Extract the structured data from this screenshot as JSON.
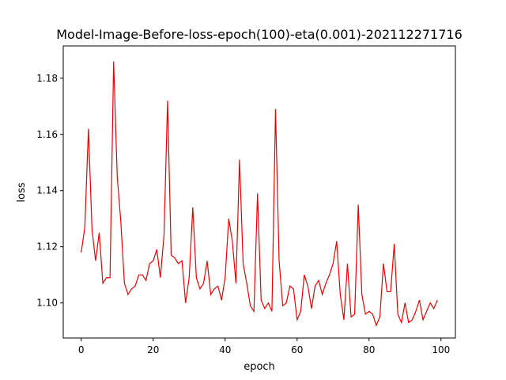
{
  "chart_data": {
    "type": "line",
    "title": "Model-Image-Before-loss-epoch(100)-eta(0.001)-202112271716",
    "xlabel": "epoch",
    "ylabel": "loss",
    "xlim": [
      -5,
      104
    ],
    "ylim": [
      1.0875,
      1.1915
    ],
    "grid": false,
    "xticks": [
      0,
      20,
      40,
      60,
      80,
      100
    ],
    "xtick_labels": [
      "0",
      "20",
      "40",
      "60",
      "80",
      "100"
    ],
    "yticks": [
      1.1,
      1.12,
      1.14,
      1.16,
      1.18
    ],
    "ytick_labels": [
      "1.10",
      "1.12",
      "1.14",
      "1.16",
      "1.18"
    ],
    "series": [
      {
        "color": "#ee0000",
        "x": [
          0,
          1,
          2,
          3,
          4,
          5,
          6,
          7,
          8,
          9,
          10,
          11,
          12,
          13,
          14,
          15,
          16,
          17,
          18,
          19,
          20,
          21,
          22,
          23,
          24,
          25,
          26,
          27,
          28,
          29,
          30,
          31,
          32,
          33,
          34,
          35,
          36,
          37,
          38,
          39,
          40,
          41,
          42,
          43,
          44,
          45,
          46,
          47,
          48,
          49,
          50,
          51,
          52,
          53,
          54,
          55,
          56,
          57,
          58,
          59,
          60,
          61,
          62,
          63,
          64,
          65,
          66,
          67,
          68,
          69,
          70,
          71,
          72,
          73,
          74,
          75,
          76,
          77,
          78,
          79,
          80,
          81,
          82,
          83,
          84,
          85,
          86,
          87,
          88,
          89,
          90,
          91,
          92,
          93,
          94,
          95,
          96,
          97,
          98,
          99
        ],
        "values": [
          1.118,
          1.127,
          1.162,
          1.126,
          1.115,
          1.125,
          1.107,
          1.109,
          1.109,
          1.186,
          1.145,
          1.129,
          1.107,
          1.103,
          1.105,
          1.106,
          1.11,
          1.11,
          1.108,
          1.114,
          1.115,
          1.119,
          1.109,
          1.124,
          1.172,
          1.117,
          1.116,
          1.114,
          1.115,
          1.1,
          1.109,
          1.134,
          1.109,
          1.105,
          1.107,
          1.115,
          1.103,
          1.105,
          1.106,
          1.101,
          1.109,
          1.13,
          1.122,
          1.107,
          1.151,
          1.114,
          1.107,
          1.099,
          1.097,
          1.139,
          1.101,
          1.098,
          1.1,
          1.097,
          1.169,
          1.115,
          1.099,
          1.1,
          1.106,
          1.105,
          1.094,
          1.097,
          1.11,
          1.106,
          1.098,
          1.106,
          1.108,
          1.103,
          1.107,
          1.11,
          1.114,
          1.122,
          1.103,
          1.094,
          1.114,
          1.095,
          1.096,
          1.135,
          1.103,
          1.096,
          1.097,
          1.096,
          1.092,
          1.095,
          1.114,
          1.104,
          1.104,
          1.121,
          1.096,
          1.093,
          1.1,
          1.093,
          1.094,
          1.097,
          1.101,
          1.094,
          1.097,
          1.1,
          1.098,
          1.101
        ]
      }
    ]
  }
}
